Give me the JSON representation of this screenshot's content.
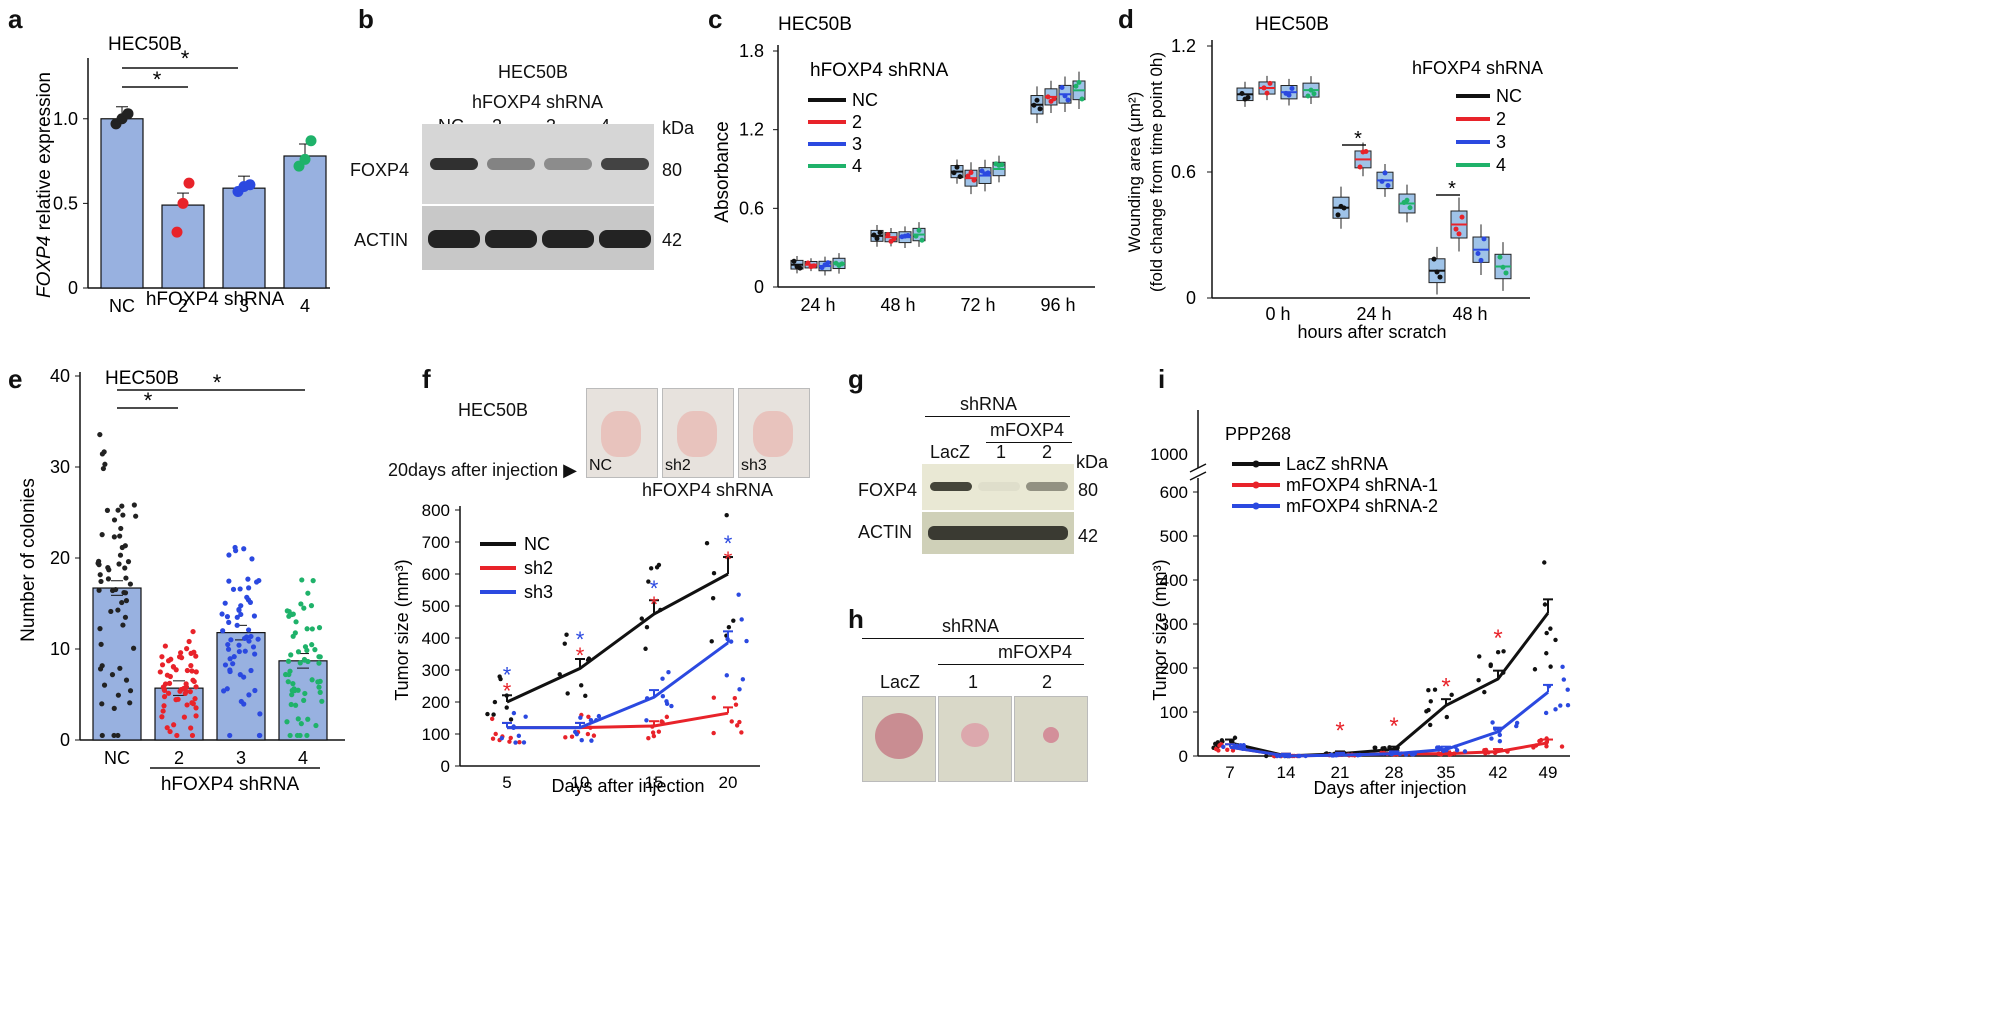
{
  "panels": {
    "a": {
      "label": "a",
      "cell": "HEC50B",
      "ylabel_italic": "FOXP4",
      "ylabel_rest": " relative expression",
      "xlabel": "hFOXP4 shRNA",
      "yticks": [
        "0",
        "0.5",
        "1.0"
      ],
      "ylim": [
        0,
        1.3
      ],
      "categories": [
        "NC",
        "2",
        "3",
        "4"
      ],
      "values": [
        1.0,
        0.49,
        0.59,
        0.78
      ],
      "colors": [
        "#222222",
        "#e8232a",
        "#2b49e0",
        "#1fb26a"
      ],
      "points": [
        [
          0.97,
          1.0,
          1.03
        ],
        [
          0.33,
          0.5,
          0.62
        ],
        [
          0.57,
          0.6,
          0.61
        ],
        [
          0.72,
          0.76,
          0.87
        ]
      ],
      "sig": [
        "*",
        "*"
      ]
    },
    "b": {
      "label": "b",
      "cell": "HEC50B",
      "shrna": "hFOXP4 shRNA",
      "lanes": [
        "NC",
        "2",
        "3",
        "4"
      ],
      "kda": "kDa",
      "bands": [
        "FOXP4",
        "ACTIN"
      ],
      "sizes": [
        "80",
        "42"
      ],
      "intensity_foxp4": [
        0.9,
        0.45,
        0.4,
        0.8
      ],
      "intensity_actin": [
        1.0,
        1.0,
        1.0,
        1.0
      ]
    },
    "c": {
      "label": "c",
      "cell": "HEC50B",
      "ylabel": "Absorbance",
      "legend_title": "hFOXP4 shRNA",
      "legend": [
        "NC",
        "2",
        "3",
        "4"
      ],
      "colors": [
        "#111111",
        "#e8232a",
        "#2b49e0",
        "#1fb26a"
      ],
      "yticks": [
        "0",
        "0.6",
        "1.2",
        "1.8"
      ],
      "ylim": [
        0,
        1.8
      ],
      "categories": [
        "24 h",
        "48 h",
        "72 h",
        "96 h"
      ],
      "medians": [
        [
          0.17,
          0.17,
          0.16,
          0.18
        ],
        [
          0.39,
          0.38,
          0.38,
          0.4
        ],
        [
          0.88,
          0.83,
          0.85,
          0.9
        ],
        [
          1.39,
          1.45,
          1.47,
          1.5
        ]
      ]
    },
    "d": {
      "label": "d",
      "cell": "HEC50B",
      "ylabel1": "Wounding area (μm²)",
      "ylabel2": "(fold change from time point 0h)",
      "legend_title": "hFOXP4 shRNA",
      "legend": [
        "NC",
        "2",
        "3",
        "4"
      ],
      "colors": [
        "#111111",
        "#e8232a",
        "#2b49e0",
        "#1fb26a"
      ],
      "yticks": [
        "0",
        "0.6",
        "1.2"
      ],
      "ylim": [
        0,
        1.2
      ],
      "categories": [
        "0 h",
        "24 h",
        "48 h"
      ],
      "xlabel": "hours after scratch",
      "medians": [
        [
          0.97,
          1.0,
          0.98,
          0.99
        ],
        [
          0.43,
          0.66,
          0.56,
          0.45
        ],
        [
          0.13,
          0.35,
          0.23,
          0.15
        ]
      ],
      "sig": [
        "*",
        "*"
      ]
    },
    "e": {
      "label": "e",
      "cell": "HEC50B",
      "ylabel": "Number of colonies",
      "xlabel": "hFOXP4 shRNA",
      "yticks": [
        "0",
        "10",
        "20",
        "30",
        "40"
      ],
      "ylim": [
        0,
        40
      ],
      "categories": [
        "NC",
        "2",
        "3",
        "4"
      ],
      "values": [
        16.7,
        5.7,
        11.8,
        8.7
      ],
      "colors": [
        "#222222",
        "#e8232a",
        "#2b49e0",
        "#1fb26a"
      ],
      "sig": [
        "*",
        "*"
      ]
    },
    "f": {
      "label": "f",
      "cell": "HEC50B",
      "photo_caption": "20days after injection ▶",
      "photo_labels": [
        "NC",
        "sh2",
        "sh3"
      ],
      "photo_sub": "hFOXP4 shRNA",
      "ylabel": "Tumor size (mm³)",
      "xlabel": "Days after injection",
      "legend": [
        "NC",
        "sh2",
        "sh3"
      ],
      "colors": [
        "#111111",
        "#e8232a",
        "#2b49e0"
      ],
      "yticks": [
        "0",
        "100",
        "200",
        "300",
        "400",
        "500",
        "600",
        "700",
        "800"
      ],
      "ylim": [
        0,
        800
      ],
      "x": [
        5,
        10,
        15,
        20
      ],
      "series": [
        {
          "name": "NC",
          "values": [
            200,
            305,
            475,
            600
          ]
        },
        {
          "name": "sh2",
          "values": [
            120,
            120,
            125,
            165
          ]
        },
        {
          "name": "sh3",
          "values": [
            120,
            120,
            215,
            385
          ]
        }
      ],
      "sig": "*"
    },
    "g": {
      "label": "g",
      "shrna": "shRNA",
      "group": "mFOXP4",
      "lanes": [
        "LacZ",
        "1",
        "2"
      ],
      "kda": "kDa",
      "bands": [
        "FOXP4",
        "ACTIN"
      ],
      "sizes": [
        "80",
        "42"
      ],
      "intensity_foxp4": [
        0.85,
        0.05,
        0.45
      ]
    },
    "h": {
      "label": "h",
      "shrna": "shRNA",
      "group": "mFOXP4",
      "lanes": [
        "LacZ",
        "1",
        "2"
      ]
    },
    "i": {
      "label": "i",
      "cell": "PPP268",
      "ylabel": "Tumor size (mm³)",
      "xlabel": "Days after injection",
      "legend": [
        "LacZ shRNA",
        "mFOXP4 shRNA-1",
        "mFOXP4 shRNA-2"
      ],
      "colors": [
        "#111111",
        "#e8232a",
        "#2b49e0"
      ],
      "yticks": [
        "0",
        "100",
        "200",
        "300",
        "400",
        "500",
        "600"
      ],
      "ytick_break": "1000",
      "ylim": [
        0,
        650
      ],
      "x": [
        7,
        14,
        21,
        28,
        35,
        42,
        49
      ],
      "series": [
        {
          "name": "LacZ shRNA",
          "values": [
            30,
            0,
            5,
            15,
            115,
            175,
            325
          ]
        },
        {
          "name": "mFOXP4 shRNA-1",
          "values": [
            20,
            0,
            2,
            5,
            5,
            10,
            30
          ]
        },
        {
          "name": "mFOXP4 shRNA-2",
          "values": [
            20,
            0,
            2,
            5,
            15,
            55,
            145
          ]
        }
      ],
      "sig": "*"
    }
  }
}
